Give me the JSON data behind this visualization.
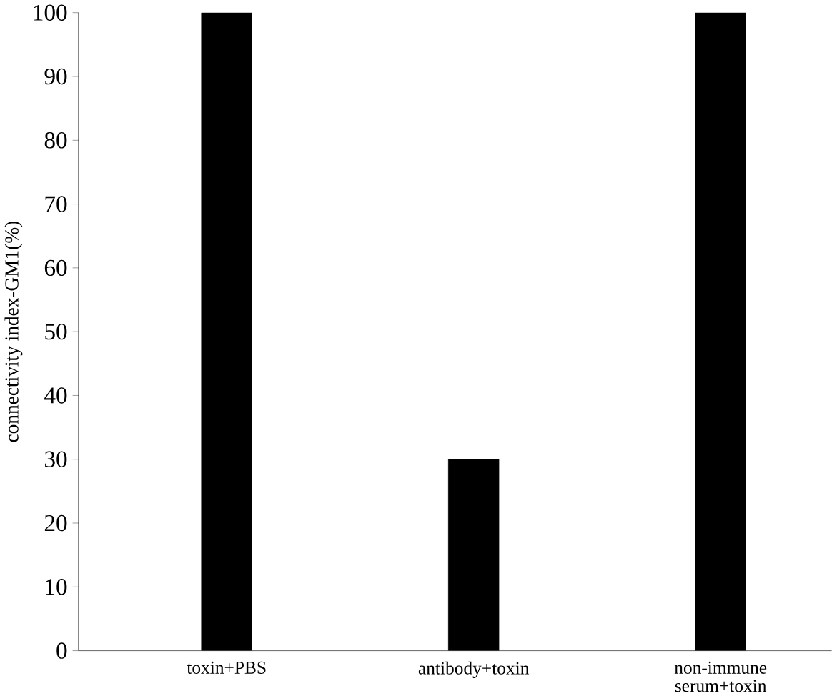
{
  "chart_data": {
    "type": "bar",
    "ylabel": "connectivity index-GM1(%)",
    "categories": [
      "toxin+PBS",
      "antibody+toxin",
      "non-immune serum+toxin"
    ],
    "values": [
      100,
      30,
      100
    ],
    "color": "#000000",
    "ylim": [
      0,
      100
    ],
    "yticks": [
      0,
      10,
      20,
      30,
      40,
      50,
      60,
      70,
      80,
      90,
      100
    ],
    "grid": false
  }
}
